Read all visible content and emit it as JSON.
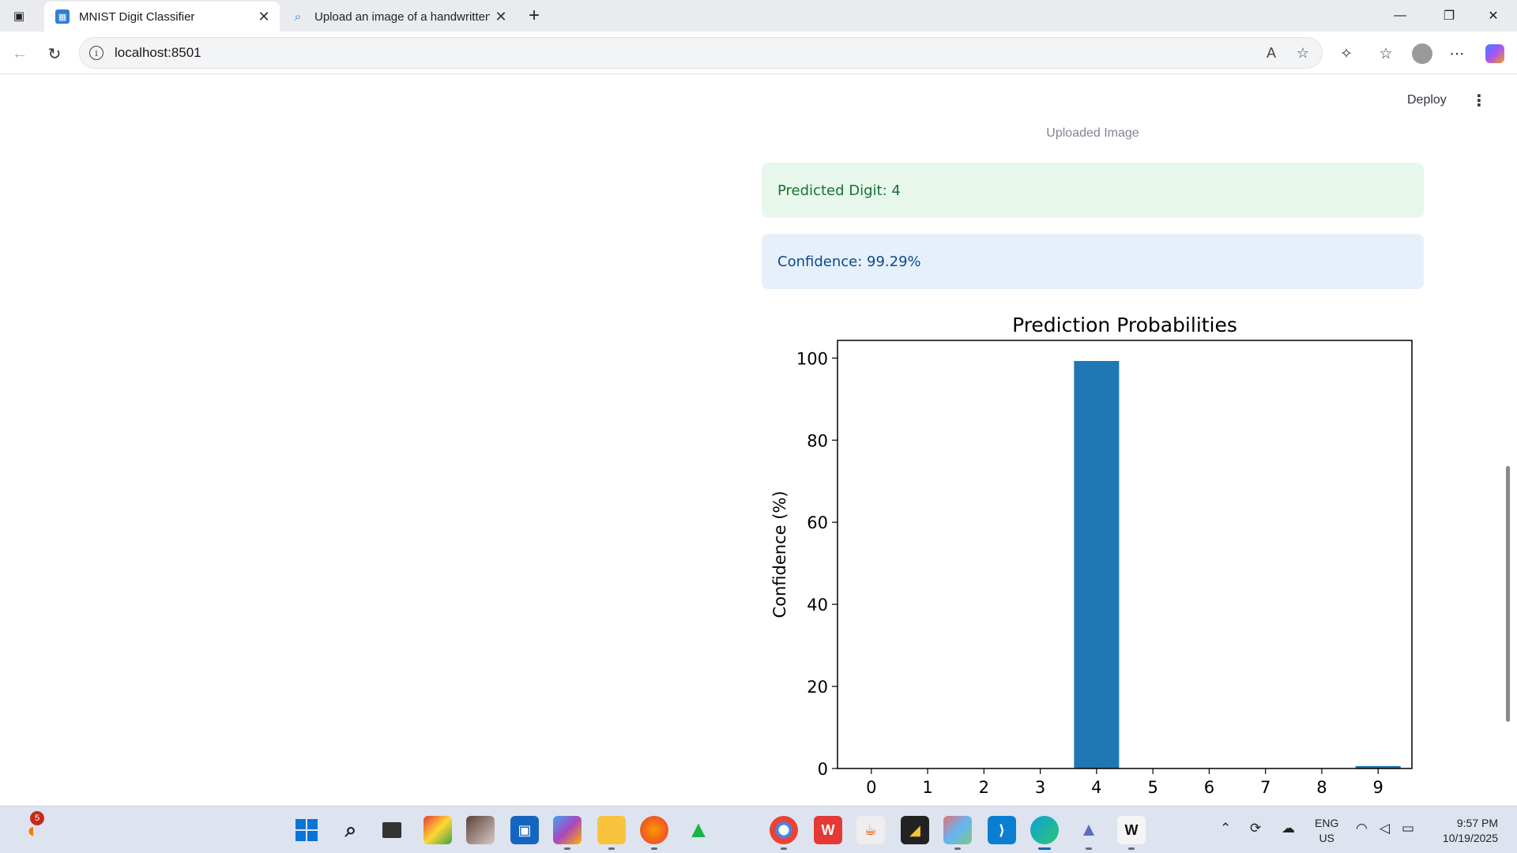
{
  "browser": {
    "tabs": [
      {
        "title": "MNIST Digit Classifier",
        "active": true
      },
      {
        "title": "Upload an image of a handwritten",
        "active": false
      }
    ],
    "url": "localhost:8501"
  },
  "app": {
    "deploy_label": "Deploy",
    "image_caption": "Uploaded Image",
    "prediction_text": "Predicted Digit: 4",
    "confidence_text": "Confidence: 99.29%"
  },
  "chart_data": {
    "type": "bar",
    "title": "Prediction Probabilities",
    "xlabel": "",
    "ylabel": "Confidence (%)",
    "categories": [
      "0",
      "1",
      "2",
      "3",
      "4",
      "5",
      "6",
      "7",
      "8",
      "9"
    ],
    "values": [
      0.0,
      0.0,
      0.0,
      0.0,
      99.29,
      0.0,
      0.0,
      0.0,
      0.0,
      0.6
    ],
    "ylim": [
      0,
      104.3
    ],
    "yticks": [
      0,
      20,
      40,
      60,
      80,
      100
    ],
    "bar_color": "#1f77b4",
    "grid": false
  },
  "taskbar": {
    "notification_count": "5",
    "lang_line1": "ENG",
    "lang_line2": "US",
    "time": "9:57 PM",
    "date": "10/19/2025"
  },
  "colors": {
    "success_bg": "#e8f7ec",
    "success_text": "#177233",
    "info_bg": "#e6f0fb",
    "info_text": "#0a4c8c"
  }
}
